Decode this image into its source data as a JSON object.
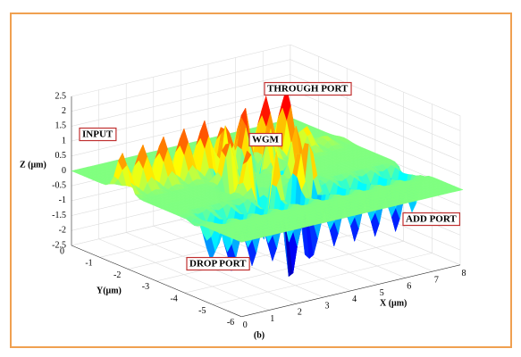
{
  "figure": {
    "axes": {
      "z": {
        "label": "Z (μm)",
        "ticks": [
          "2.5",
          "2",
          "1.5",
          "1",
          "0.5",
          "0",
          "-0.5",
          "-1",
          "-1.5",
          "-2",
          "-2.5"
        ]
      },
      "y": {
        "label": "Y(μm)",
        "ticks": [
          "0",
          "-1",
          "-2",
          "-3",
          "-4",
          "-5",
          "-6"
        ]
      },
      "x": {
        "label": "X (μm)",
        "ticks": [
          "0",
          "1",
          "2",
          "3",
          "4",
          "5",
          "6",
          "7",
          "8"
        ]
      }
    },
    "annotations": [
      "INPUT",
      "WGM",
      "THROUGH PORT",
      "ADD PORT",
      "DROP PORT"
    ],
    "caption": "(b)"
  }
}
